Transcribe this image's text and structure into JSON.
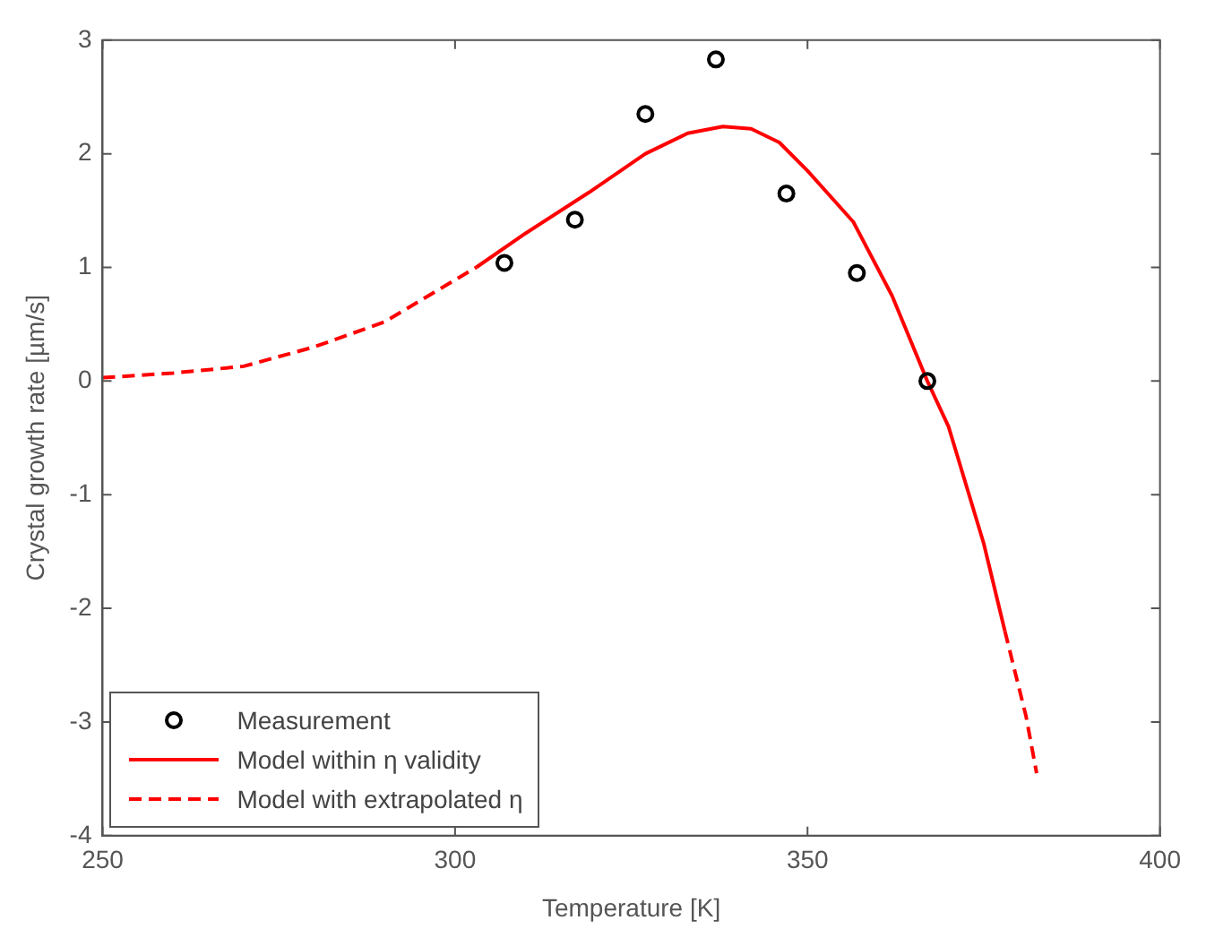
{
  "chart_data": {
    "type": "scatter",
    "xlabel": "Temperature [K]",
    "ylabel": "Crystal growth rate [µm/s]",
    "xlim": [
      250,
      400
    ],
    "xticks": [
      250,
      300,
      350,
      400
    ],
    "ylim": [
      -4,
      3
    ],
    "yticks": [
      -4,
      -3,
      -2,
      -1,
      0,
      1,
      2,
      3
    ],
    "grid": false,
    "legend": "bottom left",
    "series": [
      {
        "name": "Measurement",
        "type": "scatter",
        "marker": "circle",
        "color": "#000000",
        "x": [
          307,
          317,
          327,
          337,
          347,
          357,
          367
        ],
        "values": [
          1.04,
          1.42,
          2.35,
          2.83,
          1.65,
          0.95,
          0.0
        ]
      },
      {
        "name": "Model within η validity",
        "type": "line",
        "line_style": "solid",
        "marker": "none",
        "color": "#ff0000",
        "x": [
          303,
          310,
          319,
          327,
          333,
          338,
          342,
          346,
          350,
          356.5,
          362,
          367,
          370,
          375,
          378
        ],
        "values": [
          1.0,
          1.3,
          1.66,
          2.0,
          2.18,
          2.24,
          2.22,
          2.1,
          1.85,
          1.4,
          0.75,
          0.0,
          -0.4,
          -1.43,
          -2.2
        ]
      },
      {
        "name": "Model with extrapolated η",
        "type": "line",
        "line_style": "dashed",
        "marker": "none",
        "color": "#ff0000",
        "x": [
          250,
          260,
          270,
          280,
          290,
          297,
          303,
          340,
          378,
          381,
          382.5
        ],
        "values": [
          0.03,
          0.07,
          0.13,
          0.3,
          0.52,
          0.78,
          1.0,
          null,
          -2.2,
          -2.95,
          -3.45
        ]
      }
    ]
  }
}
